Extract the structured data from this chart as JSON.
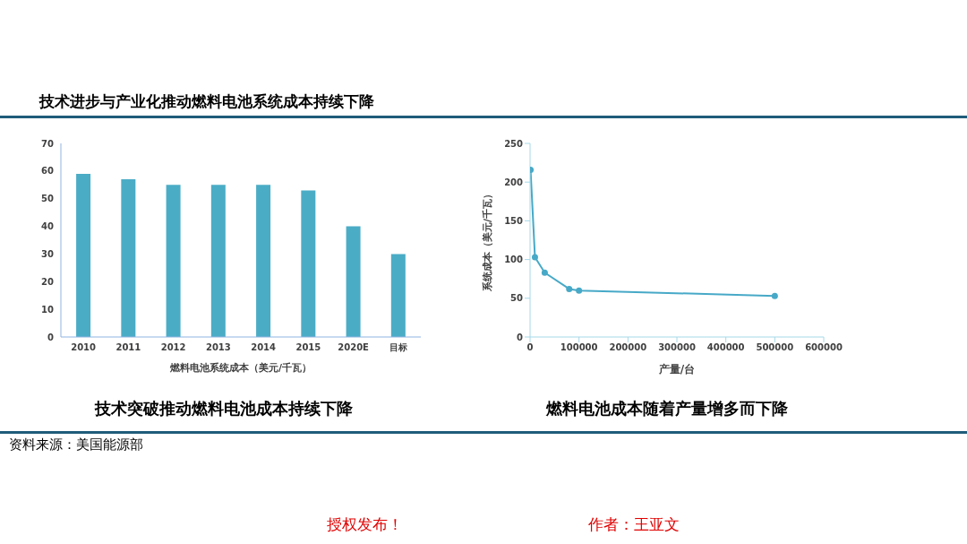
{
  "chart_data": [
    {
      "type": "bar",
      "title": "技术突破推动燃料电池成本持续下降",
      "xlabel": "燃料电池系统成本（美元/千瓦）",
      "categories": [
        "2010",
        "2011",
        "2012",
        "2013",
        "2014",
        "2015",
        "2020E",
        "目标"
      ],
      "values": [
        59,
        57,
        55,
        55,
        55,
        53,
        40,
        30
      ],
      "color": "#4bacc6",
      "ylim": [
        0,
        70
      ],
      "yticks": [
        0,
        10,
        20,
        30,
        40,
        50,
        60,
        70
      ],
      "grid": false,
      "legend": false,
      "annotations": [
        "技术进步与产业化推动燃料电池系统成本持续下降",
        "资料来源：美国能源部"
      ]
    },
    {
      "type": "line",
      "title": "燃料电池成本随着产量增多而下降",
      "xlabel": "产量/台",
      "ylabel": "系统成本（美元/千瓦）",
      "x": [
        1000,
        10000,
        30000,
        80000,
        100000,
        500000
      ],
      "values": [
        216,
        103,
        83,
        62,
        60,
        53
      ],
      "color": "#47a9c7",
      "marker": "circle",
      "xlim": [
        0,
        600000
      ],
      "xticks": [
        0,
        100000,
        200000,
        300000,
        400000,
        500000,
        600000
      ],
      "ylim": [
        0,
        250
      ],
      "yticks": [
        0,
        50,
        100,
        150,
        200,
        250
      ],
      "grid": false,
      "legend": false,
      "annotations": [
        "授权发布！",
        "作者：王亚文"
      ]
    }
  ]
}
